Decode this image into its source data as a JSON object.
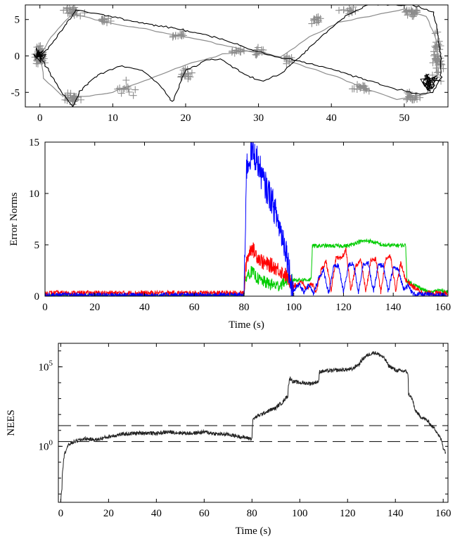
{
  "chart_data": [
    {
      "type": "scatter",
      "xlim": [
        -2,
        56
      ],
      "ylim": [
        -7,
        7
      ],
      "xticks": [
        0,
        10,
        20,
        30,
        40,
        50
      ],
      "yticks": [
        -5,
        0,
        5
      ],
      "xlabel": "",
      "ylabel": "",
      "grid": false,
      "colors": {
        "landmarks": "#8c8c8c",
        "gray_path": "#8c8c8c",
        "black_path": "#000000"
      },
      "landmarks_marker": "plus",
      "landmark_clusters": [
        {
          "x": 0,
          "y": 0,
          "n": 60,
          "sx": 0.8,
          "sy": 1.3
        },
        {
          "x": 4.5,
          "y": 6.2,
          "n": 25,
          "sx": 1.4,
          "sy": 0.7
        },
        {
          "x": 4.5,
          "y": -5.8,
          "n": 25,
          "sx": 1.3,
          "sy": 0.8
        },
        {
          "x": 9,
          "y": 4.8,
          "n": 10,
          "sx": 1.2,
          "sy": 0.5
        },
        {
          "x": 12,
          "y": -4.5,
          "n": 12,
          "sx": 1.5,
          "sy": 1.0
        },
        {
          "x": 19,
          "y": 2.8,
          "n": 12,
          "sx": 1.5,
          "sy": 0.6
        },
        {
          "x": 20,
          "y": -2.5,
          "n": 14,
          "sx": 1.3,
          "sy": 0.8
        },
        {
          "x": 27,
          "y": 0.8,
          "n": 10,
          "sx": 1.3,
          "sy": 0.6
        },
        {
          "x": 30,
          "y": 0.5,
          "n": 10,
          "sx": 1.0,
          "sy": 0.6
        },
        {
          "x": 34,
          "y": -0.5,
          "n": 10,
          "sx": 1.2,
          "sy": 0.8
        },
        {
          "x": 38,
          "y": 4.8,
          "n": 14,
          "sx": 1.3,
          "sy": 0.7
        },
        {
          "x": 42,
          "y": 6.2,
          "n": 12,
          "sx": 1.5,
          "sy": 0.5
        },
        {
          "x": 44,
          "y": -4.5,
          "n": 16,
          "sx": 1.5,
          "sy": 0.7
        },
        {
          "x": 51,
          "y": 6.0,
          "n": 22,
          "sx": 1.3,
          "sy": 0.7
        },
        {
          "x": 51,
          "y": -5.5,
          "n": 22,
          "sx": 1.3,
          "sy": 0.7
        },
        {
          "x": 54.5,
          "y": 0,
          "n": 45,
          "sx": 0.8,
          "sy": 3.2
        }
      ],
      "gray_path": [
        [
          0,
          0
        ],
        [
          2,
          3.2
        ],
        [
          4.5,
          5.8
        ],
        [
          9,
          4.6
        ],
        [
          16,
          3.4
        ],
        [
          22,
          2.2
        ],
        [
          28,
          0.8
        ],
        [
          33,
          -0.2
        ],
        [
          37,
          2.6
        ],
        [
          41,
          4.6
        ],
        [
          46,
          5.6
        ],
        [
          50,
          6.4
        ],
        [
          53,
          5.4
        ],
        [
          54.5,
          2.0
        ],
        [
          54.5,
          -3.0
        ],
        [
          53,
          -5.2
        ],
        [
          49,
          -6.0
        ],
        [
          45,
          -4.6
        ],
        [
          40,
          -2.6
        ],
        [
          35,
          -1.0
        ],
        [
          30,
          0.8
        ],
        [
          25,
          0.2
        ],
        [
          20,
          -1.2
        ],
        [
          15,
          -3.2
        ],
        [
          10,
          -5.0
        ],
        [
          6,
          -5.6
        ],
        [
          3,
          -5.4
        ],
        [
          0.5,
          -3.0
        ],
        [
          0,
          0
        ]
      ],
      "black_path": [
        [
          0,
          0
        ],
        [
          1.5,
          1.5
        ],
        [
          3,
          3.5
        ],
        [
          5,
          6.3
        ],
        [
          8,
          5.8
        ],
        [
          12,
          4.9
        ],
        [
          16,
          4.2
        ],
        [
          20,
          3.5
        ],
        [
          24,
          2.6
        ],
        [
          28,
          1.2
        ],
        [
          32,
          0.0
        ],
        [
          36,
          -0.8
        ],
        [
          40,
          -1.8
        ],
        [
          44,
          -3.0
        ],
        [
          48,
          -4.3
        ],
        [
          52,
          -5.2
        ],
        [
          54,
          -5.0
        ],
        [
          55,
          -3.0
        ],
        [
          55,
          0
        ],
        [
          54.5,
          3.5
        ],
        [
          54,
          6.0
        ],
        [
          51,
          7.0
        ],
        [
          45,
          7.0
        ],
        [
          42,
          5.5
        ],
        [
          39,
          3.0
        ],
        [
          36,
          0.2
        ],
        [
          33,
          -2.5
        ],
        [
          30.5,
          -3.5
        ],
        [
          28,
          -2.5
        ],
        [
          25,
          -0.5
        ],
        [
          23,
          -0.5
        ],
        [
          20,
          -2.0
        ],
        [
          18.2,
          -6.3
        ],
        [
          16.5,
          -4.0
        ],
        [
          14,
          -2.0
        ],
        [
          11,
          -1.4
        ],
        [
          8,
          -2.6
        ],
        [
          5.5,
          -4.8
        ],
        [
          4.5,
          -7.0
        ],
        [
          3.0,
          -5.0
        ],
        [
          1.2,
          -2.0
        ],
        [
          0,
          0
        ]
      ]
    },
    {
      "type": "line",
      "xlabel": "Time (s)",
      "ylabel": "Error Norms",
      "xlim": [
        0,
        162
      ],
      "ylim": [
        0,
        15
      ],
      "xticks": [
        0,
        20,
        40,
        60,
        80,
        100,
        120,
        140,
        160
      ],
      "yticks": [
        0,
        5,
        10,
        15
      ],
      "grid": false,
      "colors": {
        "blue": "#0000ff",
        "red": "#ff0000",
        "green": "#00cc00"
      },
      "noise_amplitude": {
        "blue": 0.25,
        "red": 0.25,
        "green": 0.2
      },
      "series": [
        {
          "color": "blue",
          "points": [
            [
              0,
              0.1
            ],
            [
              80,
              0.1
            ],
            [
              81,
              12.5
            ],
            [
              83,
              14.0
            ],
            [
              85,
              13.5
            ],
            [
              88,
              11.0
            ],
            [
              91,
              9.5
            ],
            [
              94,
              7.0
            ],
            [
              97,
              4.5
            ],
            [
              99,
              1.2
            ],
            [
              100,
              0.5
            ],
            [
              102,
              1.2
            ],
            [
              104,
              0.4
            ],
            [
              106,
              1.1
            ],
            [
              108,
              0.2
            ],
            [
              110,
              1.8
            ],
            [
              112,
              2.5
            ],
            [
              114,
              0.3
            ],
            [
              116,
              2.8
            ],
            [
              118,
              3.0
            ],
            [
              120,
              0.4
            ],
            [
              122,
              3.0
            ],
            [
              124,
              3.2
            ],
            [
              126,
              0.4
            ],
            [
              128,
              3.2
            ],
            [
              130,
              3.2
            ],
            [
              132,
              0.4
            ],
            [
              134,
              3.0
            ],
            [
              136,
              3.0
            ],
            [
              138,
              0.4
            ],
            [
              140,
              2.8
            ],
            [
              142,
              2.6
            ],
            [
              144,
              0.8
            ],
            [
              146,
              1.0
            ],
            [
              148,
              0.2
            ],
            [
              158,
              0.1
            ],
            [
              162,
              0.1
            ]
          ]
        },
        {
          "color": "red",
          "points": [
            [
              0,
              0.3
            ],
            [
              80,
              0.3
            ],
            [
              81,
              3.5
            ],
            [
              83,
              4.8
            ],
            [
              85,
              4.0
            ],
            [
              88,
              3.2
            ],
            [
              91,
              3.0
            ],
            [
              94,
              2.6
            ],
            [
              97,
              2.0
            ],
            [
              99,
              1.2
            ],
            [
              101,
              1.0
            ],
            [
              103,
              1.5
            ],
            [
              105,
              0.6
            ],
            [
              107,
              1.3
            ],
            [
              109,
              0.4
            ],
            [
              111,
              2.5
            ],
            [
              113,
              3.4
            ],
            [
              115,
              0.6
            ],
            [
              117,
              3.7
            ],
            [
              119,
              3.6
            ],
            [
              121,
              4.5
            ],
            [
              123,
              0.5
            ],
            [
              125,
              3.0
            ],
            [
              127,
              3.5
            ],
            [
              129,
              0.4
            ],
            [
              131,
              3.5
            ],
            [
              133,
              3.6
            ],
            [
              135,
              0.4
            ],
            [
              137,
              3.7
            ],
            [
              139,
              3.9
            ],
            [
              141,
              0.6
            ],
            [
              143,
              3.2
            ],
            [
              145,
              1.6
            ],
            [
              148,
              0.9
            ],
            [
              152,
              0.3
            ],
            [
              162,
              0.3
            ]
          ]
        },
        {
          "color": "green",
          "points": [
            [
              0,
              0.05
            ],
            [
              80,
              0.05
            ],
            [
              81,
              2.0
            ],
            [
              83,
              2.4
            ],
            [
              86,
              1.6
            ],
            [
              90,
              1.2
            ],
            [
              94,
              1.0
            ],
            [
              97,
              1.6
            ],
            [
              100,
              1.6
            ],
            [
              107,
              1.6
            ],
            [
              107.5,
              4.9
            ],
            [
              115,
              4.9
            ],
            [
              122,
              4.9
            ],
            [
              126,
              5.3
            ],
            [
              130,
              5.4
            ],
            [
              133,
              5.2
            ],
            [
              136,
              4.95
            ],
            [
              145,
              4.95
            ],
            [
              145.5,
              1.5
            ],
            [
              150,
              0.9
            ],
            [
              155,
              0.3
            ],
            [
              158,
              0.6
            ],
            [
              162,
              0.4
            ]
          ]
        }
      ]
    },
    {
      "type": "line",
      "xlabel": "Time (s)",
      "ylabel": "NEES",
      "yscale": "log",
      "xlim": [
        -1,
        162
      ],
      "ylim": [
        0.0003,
        3000000
      ],
      "xticks": [
        0,
        20,
        40,
        60,
        80,
        100,
        120,
        140,
        160
      ],
      "ytick_labels": [
        {
          "value": 1,
          "base": "10",
          "exp": "0"
        },
        {
          "value": 100000,
          "base": "10",
          "exp": "5"
        }
      ],
      "grid": false,
      "colors": {
        "nees": "#222222",
        "bounds": "#000000"
      },
      "bounds_style": "dashed",
      "bounds": [
        2.0,
        20.0
      ],
      "noise_amplitude_log10": 0.12,
      "series": [
        {
          "points": [
            [
              0,
              0.0003
            ],
            [
              0.5,
              0.002
            ],
            [
              1,
              0.05
            ],
            [
              2,
              0.5
            ],
            [
              4,
              1.5
            ],
            [
              6,
              2.0
            ],
            [
              10,
              3.0
            ],
            [
              15,
              2.5
            ],
            [
              20,
              4.0
            ],
            [
              25,
              5.5
            ],
            [
              30,
              6.5
            ],
            [
              35,
              7.0
            ],
            [
              40,
              6.5
            ],
            [
              45,
              8.0
            ],
            [
              50,
              7.0
            ],
            [
              55,
              6.5
            ],
            [
              60,
              8.0
            ],
            [
              65,
              6.0
            ],
            [
              70,
              5.5
            ],
            [
              75,
              4.0
            ],
            [
              80,
              3.0
            ],
            [
              80.5,
              50
            ],
            [
              85,
              120
            ],
            [
              90,
              250
            ],
            [
              93,
              600
            ],
            [
              95,
              1500
            ],
            [
              96,
              20000
            ],
            [
              97,
              12000
            ],
            [
              100,
              10000
            ],
            [
              105,
              9000
            ],
            [
              108,
              12000
            ],
            [
              108.2,
              50000
            ],
            [
              115,
              60000
            ],
            [
              122,
              70000
            ],
            [
              125,
              150000
            ],
            [
              128,
              500000
            ],
            [
              131,
              800000
            ],
            [
              134,
              500000
            ],
            [
              137,
              120000
            ],
            [
              140,
              60000
            ],
            [
              145,
              50000
            ],
            [
              145.5,
              2000
            ],
            [
              148,
              200
            ],
            [
              150,
              80
            ],
            [
              155,
              20
            ],
            [
              158,
              5
            ],
            [
              160,
              0.8
            ],
            [
              161,
              0.4
            ]
          ]
        }
      ]
    }
  ]
}
